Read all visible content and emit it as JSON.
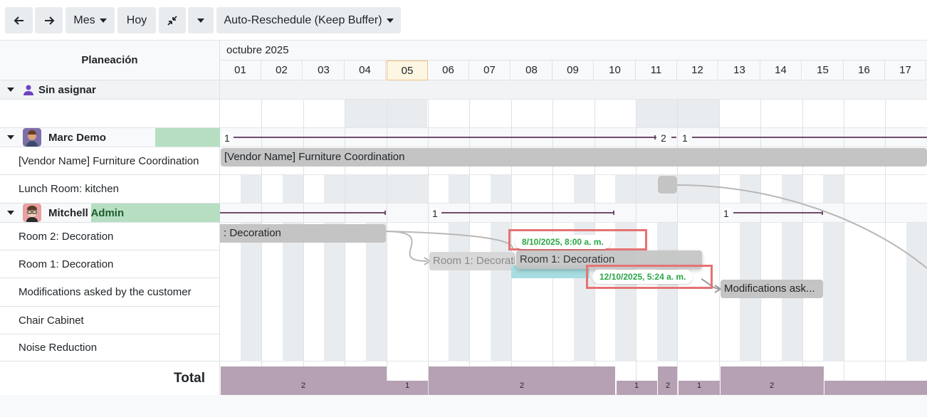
{
  "toolbar": {
    "prev_icon": "arrow-left-icon",
    "next_icon": "arrow-right-icon",
    "scale_label": "Mes",
    "today_label": "Hoy",
    "collapse_icon": "compress-icon",
    "reschedule_label": "Auto-Reschedule (Keep Buffer)"
  },
  "header": {
    "left_title": "Planeación",
    "month": "octubre 2025",
    "days": [
      "01",
      "02",
      "03",
      "04",
      "05",
      "06",
      "07",
      "08",
      "09",
      "10",
      "11",
      "12",
      "13",
      "14",
      "15",
      "16",
      "17"
    ]
  },
  "rows": {
    "unassigned": "Sin asignar",
    "marc": "Marc Demo",
    "furniture": "[Vendor Name] Furniture Coordination",
    "lunch": "Lunch Room: kitchen",
    "mitchell_a": "Mitchell ",
    "mitchell_b": "Admin",
    "room2": "Room 2: Decoration",
    "room1": "Room 1: Decoration",
    "modifications": "Modifications asked by the customer",
    "chair": "Chair Cabinet",
    "noise": "Noise Reduction"
  },
  "bars": {
    "furniture": "[Vendor Name] Furniture Coordination",
    "room2": ": Decoration",
    "room1_ghost": "Room 1: Decorati",
    "room1": "Room 1: Decoration",
    "modifications": "Modifications ask..."
  },
  "badges": {
    "start": "8/10/2025, 8:00 a. m.",
    "end": "12/10/2025, 5:24 a. m."
  },
  "workload": {
    "marc": [
      "1",
      "2",
      "1"
    ],
    "mitchell": [
      "1",
      "1"
    ]
  },
  "total": {
    "label": "Total",
    "values": [
      "2",
      "1",
      "2",
      "1",
      "2",
      "1",
      "2"
    ]
  },
  "colors": {
    "bar": "#c4c4c4",
    "total": "#b5a1b3",
    "badge_text": "#28a745",
    "highlight": "#e57373",
    "line": "#6d4c6b"
  }
}
